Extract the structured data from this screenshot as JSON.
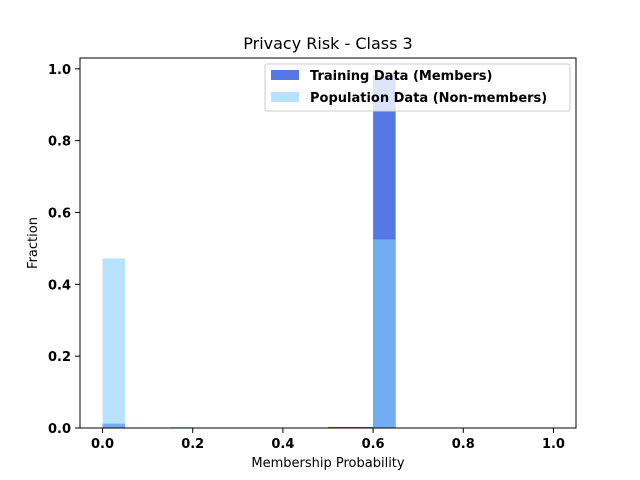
{
  "chart_data": {
    "type": "bar",
    "title": "Privacy Risk - Class 3",
    "xlabel": "Membership Probability",
    "ylabel": "Fraction",
    "xlim": [
      -0.05,
      1.05
    ],
    "ylim": [
      0.0,
      1.03
    ],
    "xticks": [
      "0.0",
      "0.2",
      "0.4",
      "0.6",
      "0.8",
      "1.0"
    ],
    "yticks": [
      "0.0",
      "0.2",
      "0.4",
      "0.6",
      "0.8",
      "1.0"
    ],
    "grid": false,
    "legend_position": "top-right",
    "bin_width": 0.05,
    "series": [
      {
        "name": "Training Data (Members)",
        "color": "#4169e1",
        "opacity": 0.9,
        "bins": [
          {
            "x0": 0.0,
            "x1": 0.05,
            "value": 0.012
          },
          {
            "x0": 0.5,
            "x1": 0.55,
            "value": 0.003
          },
          {
            "x0": 0.55,
            "x1": 0.6,
            "value": 0.003
          },
          {
            "x0": 0.6,
            "x1": 0.65,
            "value": 0.982
          }
        ]
      },
      {
        "name": "Population Data (Non-members)",
        "color": "#87cefa",
        "opacity": 0.6,
        "bins": [
          {
            "x0": 0.0,
            "x1": 0.05,
            "value": 0.472
          },
          {
            "x0": 0.15,
            "x1": 0.2,
            "value": 0.003
          },
          {
            "x0": 0.6,
            "x1": 0.65,
            "value": 0.525
          }
        ]
      }
    ]
  }
}
